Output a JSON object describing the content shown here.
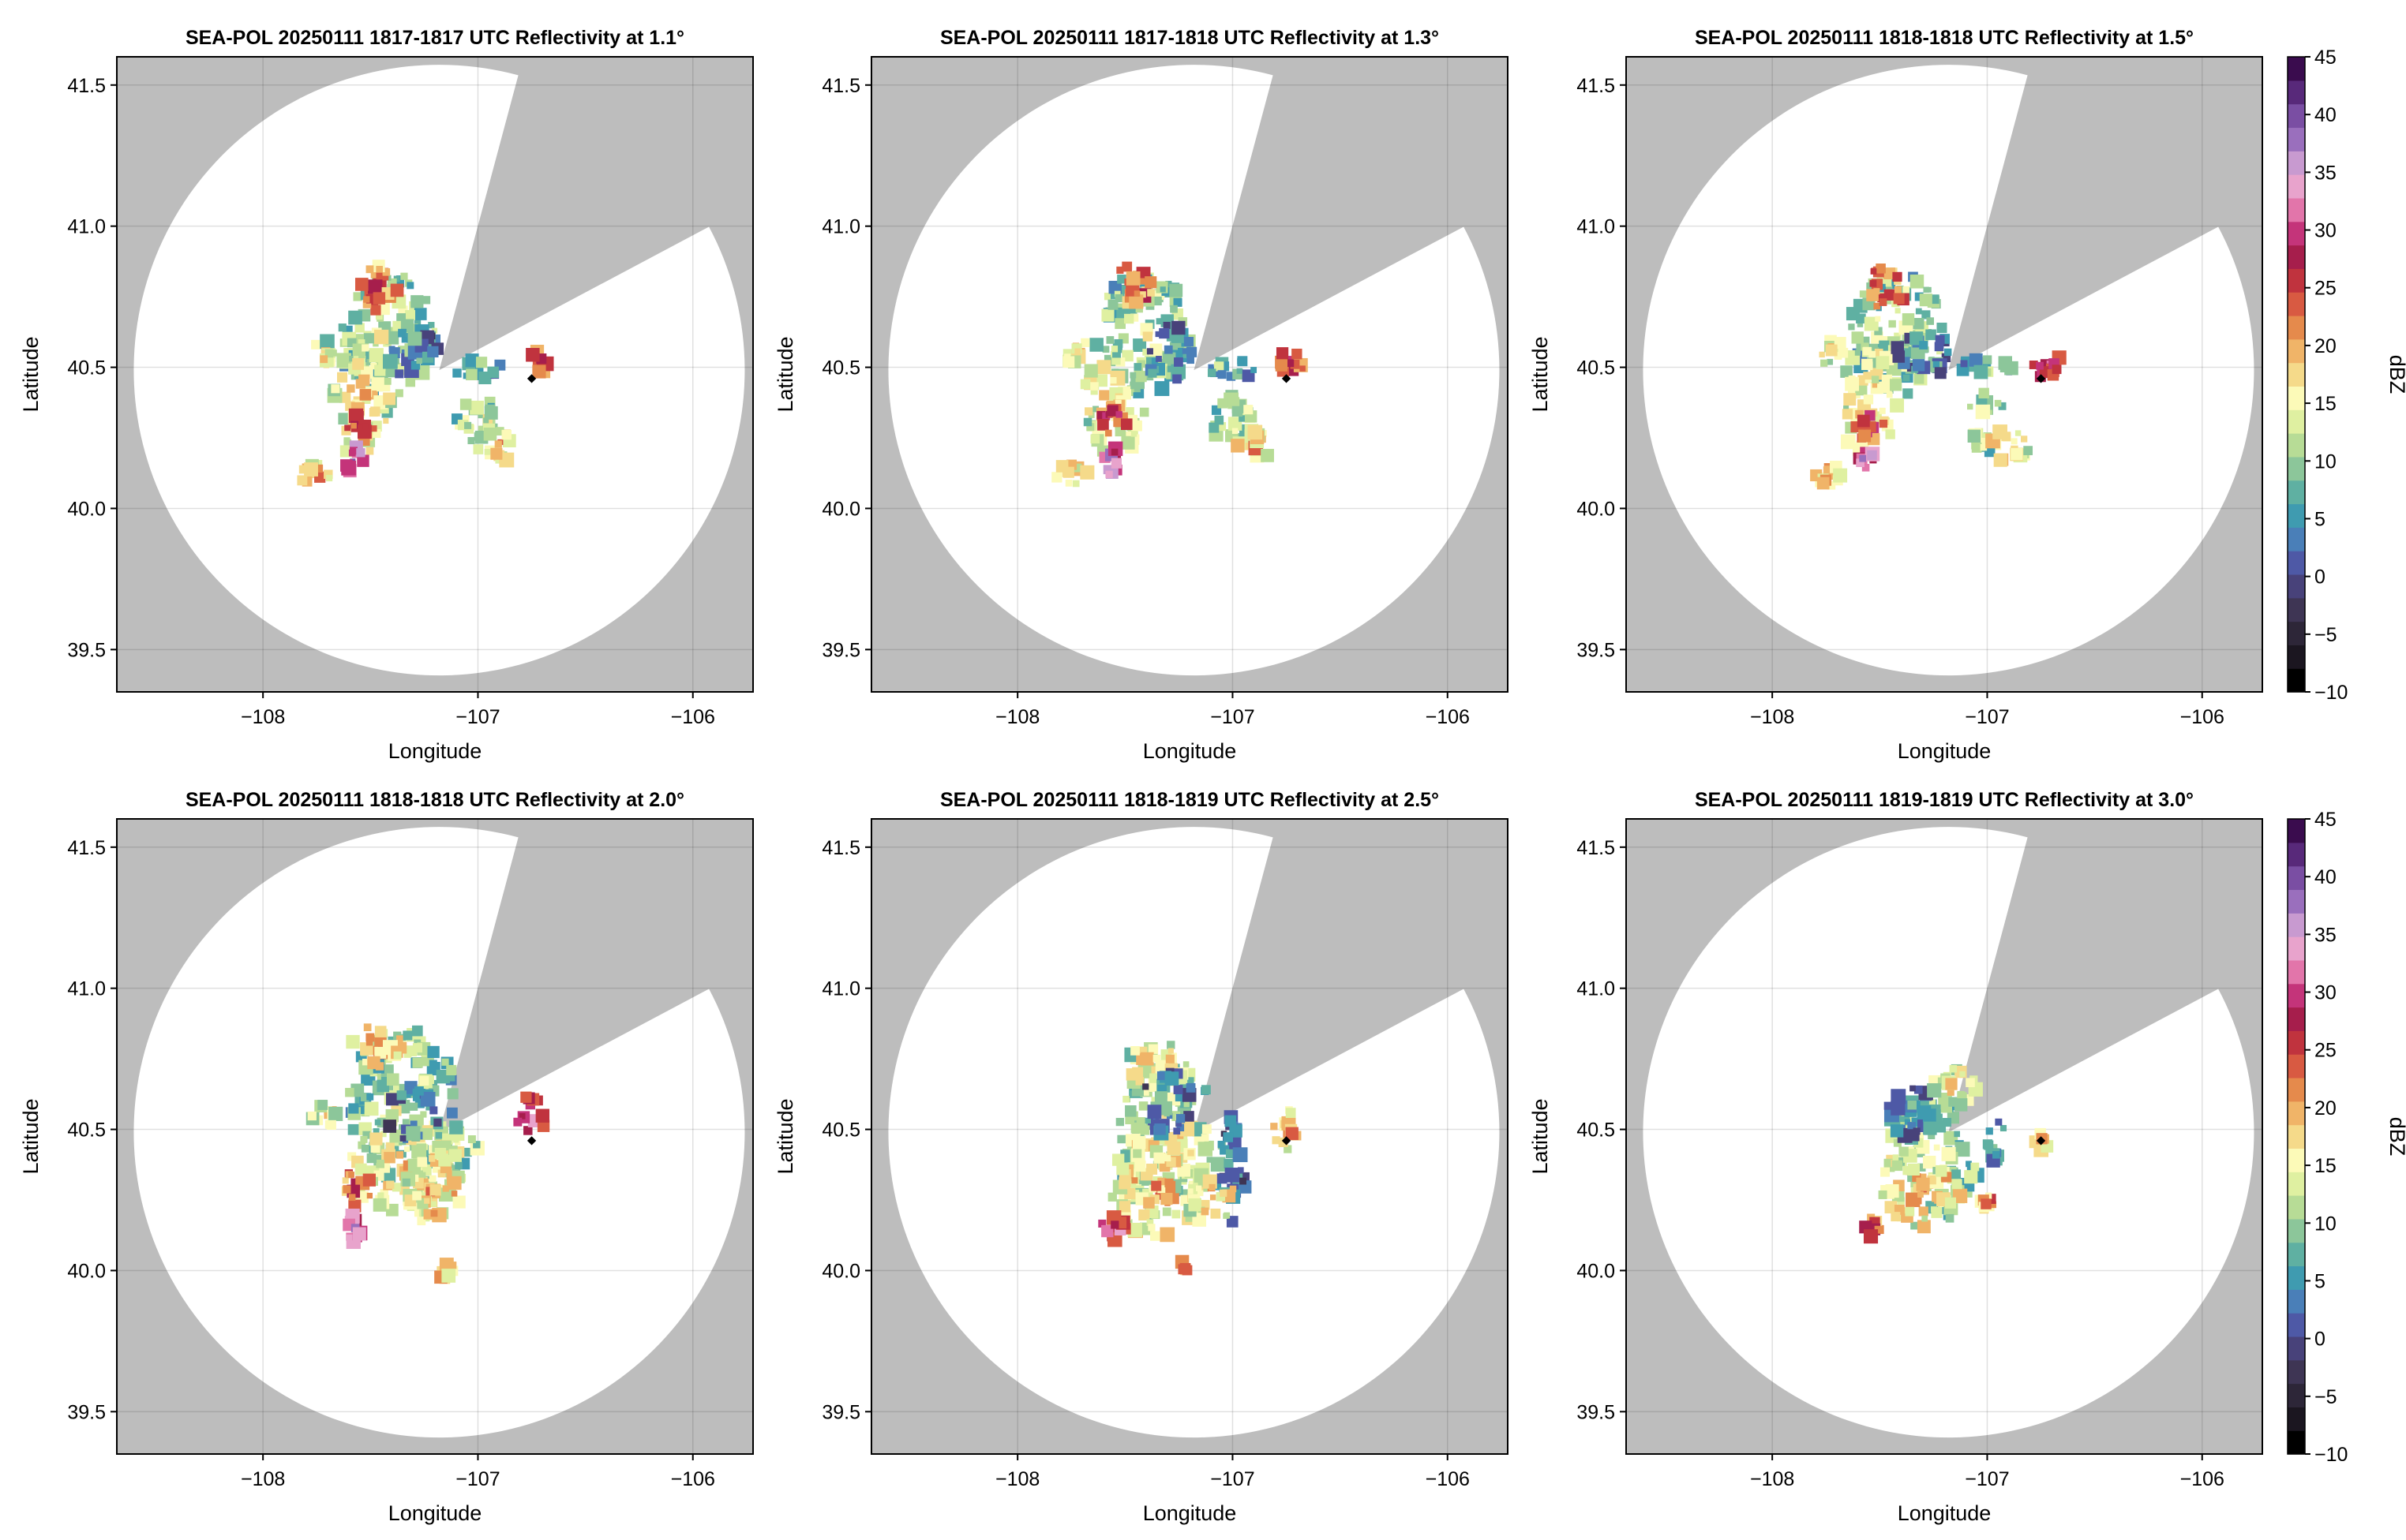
{
  "figure": {
    "panels": [
      {
        "title": "SEA-POL 20250111 1817-1817 UTC Reflectivity at 1.1°",
        "xlabel": "Longitude",
        "ylabel": "Latitude"
      },
      {
        "title": "SEA-POL 20250111 1817-1818 UTC Reflectivity at 1.3°",
        "xlabel": "Longitude",
        "ylabel": "Latitude"
      },
      {
        "title": "SEA-POL 20250111 1818-1818 UTC Reflectivity at 1.5°",
        "xlabel": "Longitude",
        "ylabel": "Latitude"
      },
      {
        "title": "SEA-POL 20250111 1818-1818 UTC Reflectivity at 2.0°",
        "xlabel": "Longitude",
        "ylabel": "Latitude"
      },
      {
        "title": "SEA-POL 20250111 1818-1819 UTC Reflectivity at 2.5°",
        "xlabel": "Longitude",
        "ylabel": "Latitude"
      },
      {
        "title": "SEA-POL 20250111 1819-1819 UTC Reflectivity at 3.0°",
        "xlabel": "Longitude",
        "ylabel": "Latitude"
      }
    ],
    "colorbar": {
      "label": "dBZ",
      "ticks": [
        "−10",
        "−5",
        "0",
        "5",
        "10",
        "15",
        "20",
        "25",
        "30",
        "35",
        "40",
        "45"
      ],
      "range": [
        -10,
        45
      ],
      "colors": [
        "#000000",
        "#1b1620",
        "#2d2638",
        "#3e3554",
        "#48427a",
        "#4e59a6",
        "#4a7fb8",
        "#3f9bb0",
        "#5fb0a2",
        "#8cc69a",
        "#b7dc96",
        "#dff0a1",
        "#fcfab8",
        "#f5da8a",
        "#f0b468",
        "#e58a4c",
        "#d85a42",
        "#c0333e",
        "#a61e4c",
        "#c4347a",
        "#e275aa",
        "#e8a3cc",
        "#c89ad0",
        "#9a6fbd",
        "#7a4ea3",
        "#58297a",
        "#3a0c4e"
      ]
    },
    "radar_marker_color": "#000000",
    "blocked_sector_color": "#bdbdbd",
    "grid": true
  },
  "chart_data": [
    {
      "type": "heatmap",
      "title": "SEA-POL 20250111 1817-1817 UTC Reflectivity at 1.1°",
      "elevation_deg": 1.1,
      "xlabel": "Longitude",
      "ylabel": "Latitude",
      "xlim": [
        -108.68,
        -105.72
      ],
      "ylim": [
        39.35,
        41.6
      ],
      "xticks": [
        -108,
        -107,
        -106
      ],
      "yticks": [
        39.5,
        40.0,
        40.5,
        41.0,
        41.5
      ],
      "colorbar_label": "dBZ",
      "clim": [
        -10,
        45
      ],
      "radar_site": [
        -107.18,
        40.49
      ],
      "marker": [
        -106.75,
        40.46
      ]
    },
    {
      "type": "heatmap",
      "title": "SEA-POL 20250111 1817-1818 UTC Reflectivity at 1.3°",
      "elevation_deg": 1.3,
      "xlabel": "Longitude",
      "ylabel": "Latitude",
      "xlim": [
        -108.68,
        -105.72
      ],
      "ylim": [
        39.35,
        41.6
      ],
      "xticks": [
        -108,
        -107,
        -106
      ],
      "yticks": [
        39.5,
        40.0,
        40.5,
        41.0,
        41.5
      ],
      "colorbar_label": "dBZ",
      "clim": [
        -10,
        45
      ],
      "radar_site": [
        -107.18,
        40.49
      ],
      "marker": [
        -106.75,
        40.46
      ]
    },
    {
      "type": "heatmap",
      "title": "SEA-POL 20250111 1818-1818 UTC Reflectivity at 1.5°",
      "elevation_deg": 1.5,
      "xlabel": "Longitude",
      "ylabel": "Latitude",
      "xlim": [
        -108.68,
        -105.72
      ],
      "ylim": [
        39.35,
        41.6
      ],
      "xticks": [
        -108,
        -107,
        -106
      ],
      "yticks": [
        39.5,
        40.0,
        40.5,
        41.0,
        41.5
      ],
      "colorbar_label": "dBZ",
      "clim": [
        -10,
        45
      ],
      "radar_site": [
        -107.18,
        40.49
      ],
      "marker": [
        -106.75,
        40.46
      ]
    },
    {
      "type": "heatmap",
      "title": "SEA-POL 20250111 1818-1818 UTC Reflectivity at 2.0°",
      "elevation_deg": 2.0,
      "xlabel": "Longitude",
      "ylabel": "Latitude",
      "xlim": [
        -108.68,
        -105.72
      ],
      "ylim": [
        39.35,
        41.6
      ],
      "xticks": [
        -108,
        -107,
        -106
      ],
      "yticks": [
        39.5,
        40.0,
        40.5,
        41.0,
        41.5
      ],
      "colorbar_label": "dBZ",
      "clim": [
        -10,
        45
      ],
      "radar_site": [
        -107.18,
        40.49
      ],
      "marker": [
        -106.75,
        40.46
      ]
    },
    {
      "type": "heatmap",
      "title": "SEA-POL 20250111 1818-1819 UTC Reflectivity at 2.5°",
      "elevation_deg": 2.5,
      "xlabel": "Longitude",
      "ylabel": "Latitude",
      "xlim": [
        -108.68,
        -105.72
      ],
      "ylim": [
        39.35,
        41.6
      ],
      "xticks": [
        -108,
        -107,
        -106
      ],
      "yticks": [
        39.5,
        40.0,
        40.5,
        41.0,
        41.5
      ],
      "colorbar_label": "dBZ",
      "clim": [
        -10,
        45
      ],
      "radar_site": [
        -107.18,
        40.49
      ],
      "marker": [
        -106.75,
        40.46
      ]
    },
    {
      "type": "heatmap",
      "title": "SEA-POL 20250111 1819-1819 UTC Reflectivity at 3.0°",
      "elevation_deg": 3.0,
      "xlabel": "Longitude",
      "ylabel": "Latitude",
      "xlim": [
        -108.68,
        -105.72
      ],
      "ylim": [
        39.35,
        41.6
      ],
      "xticks": [
        -108,
        -107,
        -106
      ],
      "yticks": [
        39.5,
        40.0,
        40.5,
        41.0,
        41.5
      ],
      "colorbar_label": "dBZ",
      "clim": [
        -10,
        45
      ],
      "radar_site": [
        -107.18,
        40.49
      ],
      "marker": [
        -106.75,
        40.46
      ]
    }
  ]
}
